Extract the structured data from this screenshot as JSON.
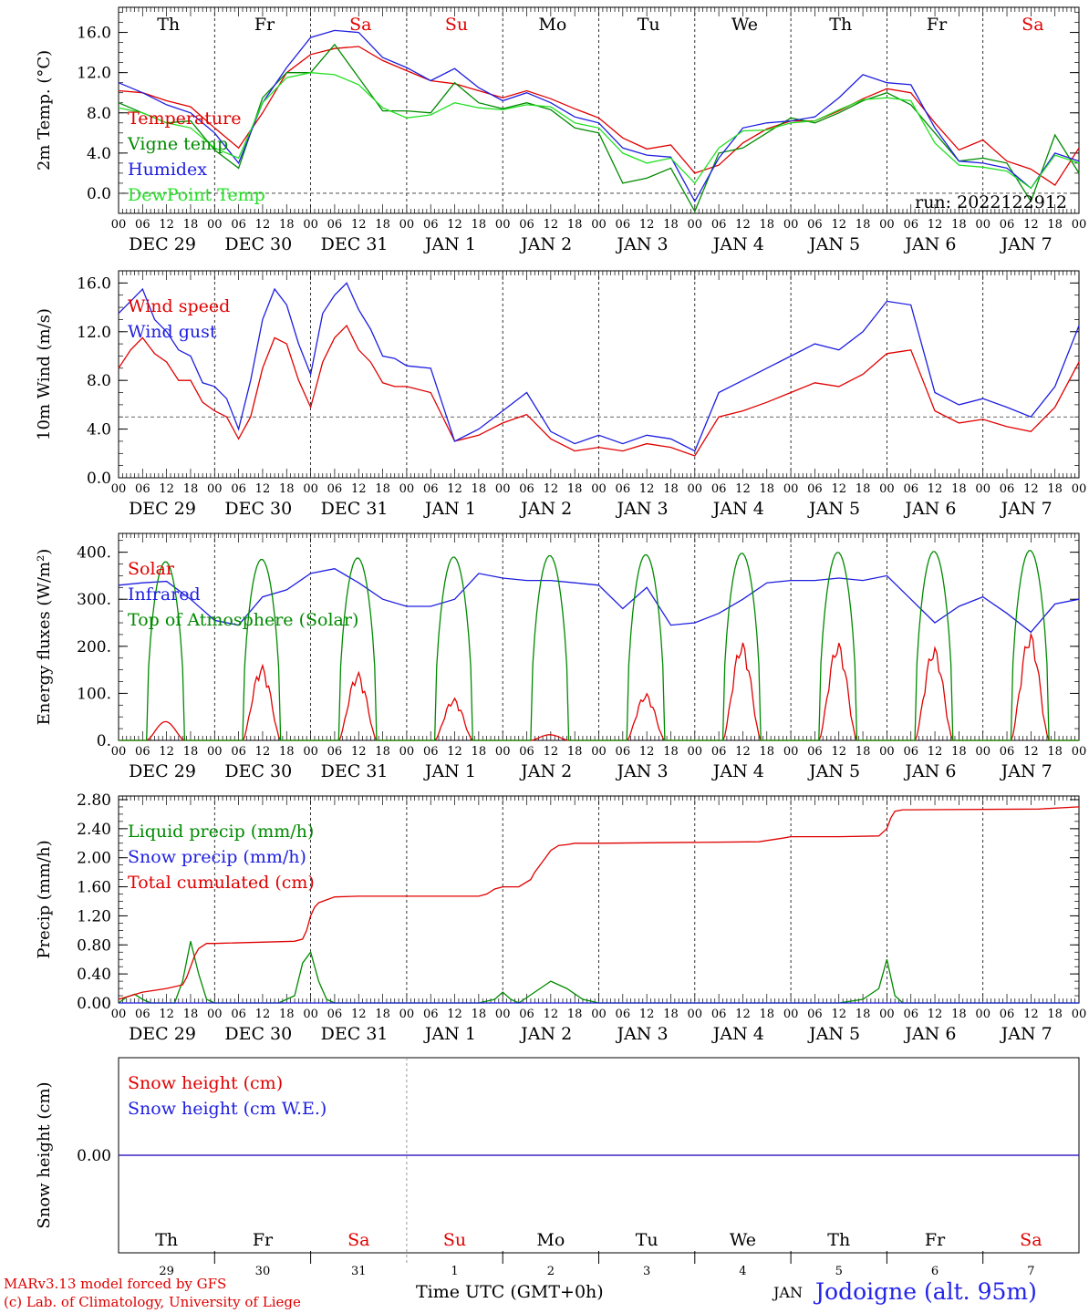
{
  "run_label": "run: 2022122912",
  "footer": {
    "credit_line1": "MARv3.13 model forced by GFS",
    "credit_line2": "(c) Lab. of Climatology, University of Liege",
    "x_axis_title": "Time UTC (GMT+0h)",
    "month": "JAN",
    "station": "Jodoigne (alt. 95m)"
  },
  "days": {
    "weekdays": [
      "Th",
      "Fr",
      "Sa",
      "Su",
      "Mo",
      "Tu",
      "We",
      "Th",
      "Fr",
      "Sa"
    ],
    "weekend_color": "#e00000",
    "weekend_index": [
      2,
      3,
      9
    ],
    "date_labels": [
      "DEC 29",
      "DEC 30",
      "DEC 31",
      "JAN  1",
      "JAN  2",
      "JAN  3",
      "JAN  4",
      "JAN  5",
      "JAN  6",
      "JAN  7"
    ],
    "day_numbers": [
      "29",
      "30",
      "31",
      "1",
      "2",
      "3",
      "4",
      "5",
      "6",
      "7"
    ],
    "hour_labels": [
      "00",
      "06",
      "12",
      "18"
    ],
    "end_label": "00"
  },
  "colors": {
    "temperature": "#e00000",
    "vigne": "#008a00",
    "humidex": "#1e1ee0",
    "dewpoint": "#22e022",
    "wind": "#e00000",
    "gust": "#1e1ee0",
    "solar": "#e00000",
    "infrared": "#1e1ee0",
    "toa": "#008a00",
    "liquid": "#008a00",
    "snowp": "#1e1ee0",
    "cumul": "#e00000",
    "snow_cm": "#e00000",
    "snow_we": "#1e1ee0"
  },
  "chart_data": [
    {
      "type": "line",
      "ylabel": "2m Temp. (°C)",
      "y_ticks": [
        "16.0",
        "12.0",
        "8.0",
        "4.0",
        "0.0"
      ],
      "ylim": [
        -2,
        18.5
      ],
      "x_unit": "hours since DEC 29 00 UTC",
      "reference_line": 0,
      "series": [
        {
          "name": "Temperature",
          "color_key": "temperature",
          "x": [
            0,
            6,
            12,
            18,
            24,
            30,
            36,
            42,
            48,
            54,
            60,
            66,
            72,
            78,
            84,
            90,
            96,
            102,
            108,
            114,
            120,
            126,
            132,
            138,
            144,
            150,
            156,
            162,
            168,
            174,
            180,
            186,
            192,
            198,
            204,
            210,
            216,
            222,
            228,
            234,
            240
          ],
          "y": [
            10.2,
            10.0,
            9.2,
            8.6,
            6.5,
            4.5,
            8.0,
            12.0,
            13.8,
            14.4,
            14.6,
            13.2,
            12.2,
            11.2,
            10.9,
            10.2,
            9.5,
            10.2,
            9.4,
            8.4,
            7.5,
            5.5,
            4.4,
            4.8,
            2.0,
            2.8,
            5.0,
            6.4,
            7.2,
            7.2,
            8.2,
            9.4,
            10.4,
            10.0,
            7.0,
            4.3,
            5.3,
            3.2,
            2.4,
            0.8,
            4.5
          ]
        },
        {
          "name": "Vigne temp",
          "color_key": "vigne",
          "x": [
            0,
            6,
            12,
            18,
            24,
            30,
            36,
            42,
            48,
            54,
            60,
            66,
            72,
            78,
            84,
            90,
            96,
            102,
            108,
            114,
            120,
            126,
            132,
            138,
            144,
            150,
            156,
            162,
            168,
            174,
            180,
            186,
            192,
            198,
            204,
            210,
            216,
            222,
            228,
            234,
            240
          ],
          "y": [
            9.0,
            8.0,
            7.0,
            7.2,
            4.3,
            2.5,
            9.5,
            12.0,
            12.0,
            14.8,
            11.5,
            8.2,
            8.2,
            8.0,
            11.0,
            9.0,
            8.4,
            9.0,
            8.3,
            6.5,
            6.0,
            1.0,
            1.5,
            2.5,
            -1.8,
            4.0,
            4.5,
            6.0,
            7.5,
            7.0,
            8.0,
            9.2,
            10.0,
            8.8,
            6.0,
            3.2,
            3.5,
            3.0,
            -0.8,
            5.8,
            2.0
          ]
        },
        {
          "name": "Humidex",
          "color_key": "humidex",
          "x": [
            0,
            6,
            12,
            18,
            24,
            30,
            36,
            42,
            48,
            54,
            60,
            66,
            72,
            78,
            84,
            90,
            96,
            102,
            108,
            114,
            120,
            126,
            132,
            138,
            144,
            150,
            156,
            162,
            168,
            174,
            180,
            186,
            192,
            198,
            204,
            210,
            216,
            222,
            228,
            234,
            240
          ],
          "y": [
            11.0,
            10.0,
            8.8,
            8.0,
            6.0,
            3.0,
            9.0,
            12.5,
            15.5,
            16.2,
            16.0,
            13.5,
            12.5,
            11.2,
            12.4,
            10.5,
            9.2,
            10.0,
            9.0,
            7.6,
            7.0,
            4.5,
            3.8,
            3.6,
            -0.8,
            3.5,
            6.5,
            7.0,
            7.2,
            7.6,
            9.5,
            11.8,
            11.0,
            10.8,
            6.5,
            3.2,
            3.0,
            2.5,
            0.5,
            4.0,
            3.2
          ]
        },
        {
          "name": "DewPoint Temp",
          "color_key": "dewpoint",
          "x": [
            0,
            6,
            12,
            18,
            24,
            30,
            36,
            42,
            48,
            54,
            60,
            66,
            72,
            78,
            84,
            90,
            96,
            102,
            108,
            114,
            120,
            126,
            132,
            138,
            144,
            150,
            156,
            162,
            168,
            174,
            180,
            186,
            192,
            198,
            204,
            210,
            216,
            222,
            228,
            234,
            240
          ],
          "y": [
            8.5,
            8.0,
            7.0,
            6.5,
            4.5,
            3.5,
            9.0,
            11.5,
            12.0,
            11.8,
            10.8,
            8.5,
            7.5,
            7.8,
            9.0,
            8.5,
            8.3,
            8.8,
            8.6,
            7.0,
            6.5,
            4.0,
            3.0,
            3.5,
            1.0,
            4.5,
            6.2,
            6.3,
            7.0,
            7.2,
            8.3,
            9.3,
            9.5,
            9.2,
            5.0,
            2.8,
            2.6,
            2.2,
            0.5,
            3.8,
            3.0
          ]
        }
      ]
    },
    {
      "type": "line",
      "ylabel": "10m Wind (m/s)",
      "y_ticks": [
        "16.0",
        "12.0",
        "8.0",
        "4.0",
        "0.0"
      ],
      "ylim": [
        0,
        17
      ],
      "reference_line": 5,
      "series": [
        {
          "name": "Wind speed",
          "color_key": "wind",
          "x": [
            0,
            3,
            6,
            9,
            12,
            15,
            18,
            21,
            24,
            27,
            30,
            33,
            36,
            39,
            42,
            45,
            48,
            51,
            54,
            57,
            60,
            63,
            66,
            69,
            72,
            78,
            84,
            90,
            96,
            102,
            108,
            114,
            120,
            126,
            132,
            138,
            144,
            150,
            156,
            162,
            168,
            174,
            180,
            186,
            192,
            198,
            204,
            210,
            216,
            222,
            228,
            234,
            240
          ],
          "y": [
            9.0,
            10.5,
            11.5,
            10.2,
            9.5,
            8.0,
            8.0,
            6.2,
            5.5,
            5.0,
            3.2,
            5.0,
            9.0,
            11.5,
            11.0,
            8.0,
            5.8,
            9.5,
            11.5,
            12.5,
            10.5,
            9.5,
            7.8,
            7.5,
            7.5,
            7.0,
            3.0,
            3.5,
            4.5,
            5.2,
            3.2,
            2.2,
            2.5,
            2.2,
            2.8,
            2.5,
            1.8,
            5.0,
            5.5,
            6.2,
            7.0,
            7.8,
            7.5,
            8.5,
            10.2,
            10.5,
            5.5,
            4.5,
            4.8,
            4.2,
            3.8,
            5.8,
            9.5
          ]
        },
        {
          "name": "Wind gust",
          "color_key": "gust",
          "x": [
            0,
            3,
            6,
            9,
            12,
            15,
            18,
            21,
            24,
            27,
            30,
            33,
            36,
            39,
            42,
            45,
            48,
            51,
            54,
            57,
            60,
            63,
            66,
            69,
            72,
            78,
            84,
            90,
            96,
            102,
            108,
            114,
            120,
            126,
            132,
            138,
            144,
            150,
            156,
            162,
            168,
            174,
            180,
            186,
            192,
            198,
            204,
            210,
            216,
            222,
            228,
            234,
            240
          ],
          "y": [
            13.5,
            14.5,
            15.5,
            13.0,
            12.0,
            10.5,
            10.0,
            7.8,
            7.5,
            6.5,
            4.0,
            8.0,
            13.0,
            15.5,
            14.2,
            11.0,
            8.5,
            13.5,
            15.0,
            16.0,
            13.8,
            12.2,
            10.0,
            9.8,
            9.2,
            9.0,
            3.0,
            4.0,
            5.5,
            7.0,
            3.8,
            2.8,
            3.5,
            2.8,
            3.5,
            3.2,
            2.2,
            7.0,
            8.0,
            9.0,
            10.0,
            11.0,
            10.5,
            12.0,
            14.5,
            14.2,
            7.0,
            6.0,
            6.5,
            5.8,
            5.0,
            7.5,
            12.5
          ]
        }
      ]
    },
    {
      "type": "line",
      "ylabel": "Energy fluxes (W/m²)",
      "y_ticks": [
        "400.",
        "300.",
        "200.",
        "100.",
        "0."
      ],
      "ylim": [
        0,
        440
      ],
      "series": [
        {
          "name": "Solar",
          "color_key": "solar",
          "day_peaks": [
            40,
            160,
            145,
            90,
            12,
            100,
            210,
            210,
            200,
            230
          ]
        },
        {
          "name": "Infrared",
          "color_key": "infrared",
          "x": [
            0,
            6,
            12,
            18,
            24,
            30,
            36,
            42,
            48,
            54,
            60,
            66,
            72,
            78,
            84,
            90,
            96,
            102,
            108,
            114,
            120,
            126,
            132,
            138,
            144,
            150,
            156,
            162,
            168,
            174,
            180,
            186,
            192,
            198,
            204,
            210,
            216,
            222,
            228,
            234,
            240
          ],
          "y": [
            330,
            335,
            338,
            300,
            255,
            245,
            305,
            320,
            355,
            365,
            335,
            300,
            285,
            285,
            300,
            355,
            345,
            340,
            340,
            335,
            330,
            280,
            325,
            245,
            250,
            270,
            300,
            335,
            340,
            340,
            345,
            340,
            350,
            300,
            250,
            285,
            305,
            270,
            230,
            290,
            300
          ]
        },
        {
          "name": "Top of Atmosphere (Solar)",
          "color_key": "toa",
          "day_peaks": [
            380,
            385,
            388,
            390,
            393,
            395,
            398,
            400,
            402,
            404
          ]
        }
      ]
    },
    {
      "type": "line",
      "ylabel": "Precip (mm/h)",
      "y_ticks": [
        "2.80",
        "2.40",
        "2.00",
        "1.60",
        "1.20",
        "0.80",
        "0.40",
        "0.00"
      ],
      "ylim": [
        0,
        2.85
      ],
      "series": [
        {
          "name": "Liquid precip (mm/h)",
          "color_key": "liquid",
          "x": [
            0,
            2,
            4,
            6,
            8,
            10,
            12,
            14,
            16,
            18,
            20,
            22,
            24,
            40,
            44,
            46,
            48,
            50,
            52,
            54,
            90,
            94,
            96,
            98,
            100,
            104,
            108,
            112,
            116,
            120,
            180,
            186,
            190,
            192,
            194,
            196,
            198,
            240
          ],
          "y": [
            0,
            0.08,
            0.12,
            0.05,
            0,
            0,
            0,
            0,
            0.3,
            0.85,
            0.4,
            0.05,
            0,
            0,
            0.1,
            0.55,
            0.7,
            0.3,
            0.05,
            0,
            0,
            0.05,
            0.15,
            0.05,
            0,
            0.15,
            0.3,
            0.2,
            0.05,
            0,
            0,
            0.05,
            0.2,
            0.6,
            0.1,
            0,
            0,
            0
          ]
        },
        {
          "name": "Snow precip (mm/h)",
          "color_key": "snowp",
          "x": [
            0,
            240
          ],
          "y": [
            0,
            0
          ]
        },
        {
          "name": "Total cumulated (cm)",
          "color_key": "cumul",
          "x": [
            0,
            6,
            12,
            16,
            17,
            18,
            19,
            20,
            22,
            24,
            44,
            46,
            47,
            48,
            49,
            50,
            52,
            54,
            60,
            90,
            92,
            94,
            96,
            100,
            103,
            104,
            106,
            108,
            110,
            112,
            114,
            116,
            120,
            160,
            166,
            168,
            180,
            190,
            192,
            193,
            194,
            196,
            198,
            230,
            240
          ],
          "y": [
            0.05,
            0.15,
            0.2,
            0.25,
            0.35,
            0.5,
            0.65,
            0.75,
            0.82,
            0.82,
            0.85,
            0.88,
            1.0,
            1.2,
            1.32,
            1.38,
            1.42,
            1.46,
            1.47,
            1.47,
            1.5,
            1.57,
            1.6,
            1.6,
            1.7,
            1.8,
            1.95,
            2.1,
            2.17,
            2.18,
            2.2,
            2.2,
            2.2,
            2.22,
            2.27,
            2.29,
            2.29,
            2.3,
            2.4,
            2.55,
            2.64,
            2.66,
            2.66,
            2.67,
            2.7
          ]
        }
      ]
    },
    {
      "type": "line",
      "ylabel": "Snow height (cm)",
      "y_ticks": [
        "0.00"
      ],
      "ylim": [
        -1,
        1
      ],
      "series": [
        {
          "name": "Snow height (cm)",
          "color_key": "snow_cm",
          "x": [
            0,
            240
          ],
          "y": [
            0,
            0
          ]
        },
        {
          "name": "Snow height (cm W.E.)",
          "color_key": "snow_we",
          "x": [
            0,
            240
          ],
          "y": [
            0,
            0
          ]
        }
      ]
    }
  ]
}
